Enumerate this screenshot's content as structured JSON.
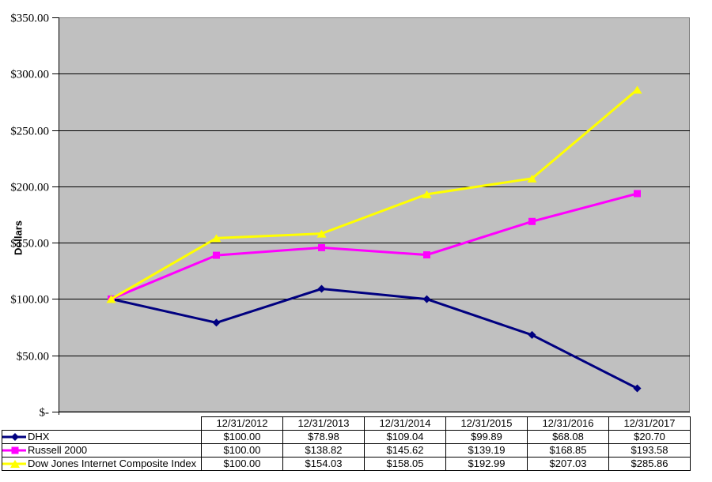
{
  "page": {
    "background": "#FFFFFF"
  },
  "chart": {
    "y_axis": {
      "title": "Dollars",
      "ticks": [
        {
          "value": 0,
          "label": "$-"
        },
        {
          "value": 50,
          "label": "$50.00"
        },
        {
          "value": 100,
          "label": "$100.00"
        },
        {
          "value": 150,
          "label": "$150.00"
        },
        {
          "value": 200,
          "label": "$200.00"
        },
        {
          "value": 250,
          "label": "$250.00"
        },
        {
          "value": 300,
          "label": "$300.00"
        },
        {
          "value": 350,
          "label": "$350.00"
        }
      ]
    },
    "colors": {
      "plot_bg": "#C0C0C0",
      "plot_border": "#808080",
      "gridline": "#000000",
      "axis": "#000000",
      "text": "#000000"
    }
  },
  "chart_data": {
    "type": "line",
    "categories": [
      "12/31/2012",
      "12/31/2013",
      "12/31/2014",
      "12/31/2015",
      "12/31/2016",
      "12/31/2017"
    ],
    "series": [
      {
        "name": "DHX",
        "color": "#000080",
        "marker": "diamond",
        "values": [
          100.0,
          78.98,
          109.04,
          99.89,
          68.08,
          20.7
        ]
      },
      {
        "name": "Russell 2000",
        "color": "#FF00FF",
        "marker": "square",
        "values": [
          100.0,
          138.82,
          145.62,
          139.19,
          168.85,
          193.58
        ]
      },
      {
        "name": "Dow Jones Internet Composite Index",
        "color": "#FFFF00",
        "marker": "triangle",
        "values": [
          100.0,
          154.03,
          158.05,
          192.99,
          207.03,
          285.86
        ]
      }
    ],
    "title": "",
    "xlabel": "",
    "ylabel": "Dollars",
    "ylim": [
      0,
      350
    ],
    "y_tick_step": 50,
    "grid": true,
    "plot_bg": "#C0C0C0",
    "legend_position": "table-rows-left"
  },
  "table": {
    "columns": [
      "12/31/2012",
      "12/31/2013",
      "12/31/2014",
      "12/31/2015",
      "12/31/2016",
      "12/31/2017"
    ],
    "rows": [
      {
        "label": "DHX",
        "values": [
          "$100.00",
          "$78.98",
          "$109.04",
          "$99.89",
          "$68.08",
          "$20.70"
        ]
      },
      {
        "label": "Russell 2000",
        "values": [
          "$100.00",
          "$138.82",
          "$145.62",
          "$139.19",
          "$168.85",
          "$193.58"
        ]
      },
      {
        "label": "Dow Jones Internet Composite Index",
        "values": [
          "$100.00",
          "$154.03",
          "$158.05",
          "$192.99",
          "$207.03",
          "$285.86"
        ]
      }
    ]
  }
}
